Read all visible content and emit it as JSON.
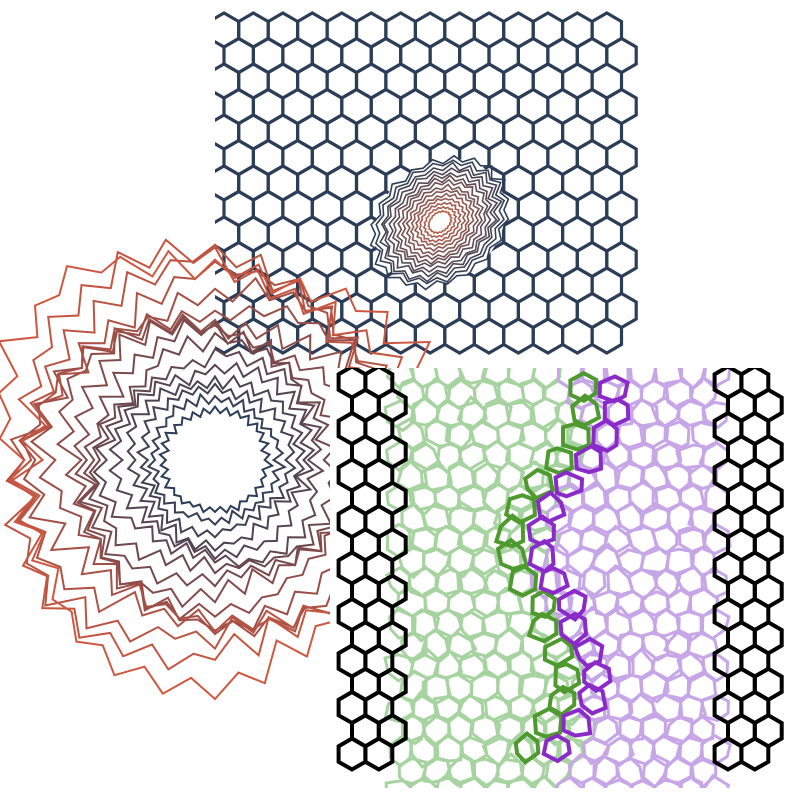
{
  "panels": {
    "honeycomb": {
      "stroke": "#2b3d57",
      "defect_core": "#b8614a",
      "rows": 12,
      "cols": 13
    },
    "rings": {
      "outer_color": "#d0573f",
      "inner_color": "#2b3d57",
      "count": 16
    },
    "boundary": {
      "edge_color": "#000000",
      "left_grain_color": "#a6d3a0",
      "right_grain_color": "#c7a6e8",
      "boundary_green": "#4f9a2f",
      "boundary_purple": "#8a2bc9"
    }
  }
}
